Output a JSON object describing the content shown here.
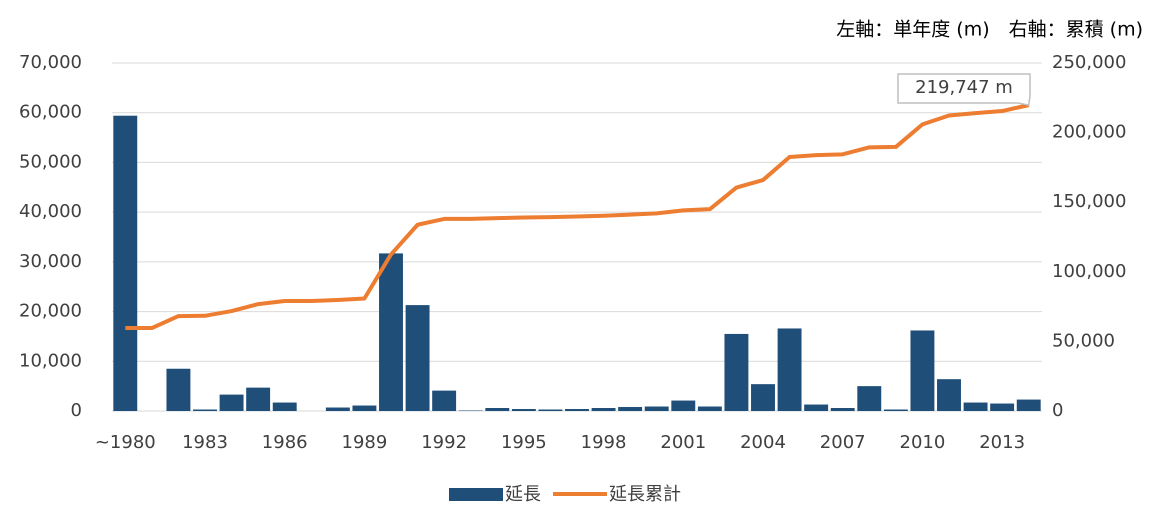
{
  "chart_data": {
    "type": "bar-line",
    "axis_note": "左軸：単年度 (m)　右軸：累積 (m)",
    "annotation": "219,747 m",
    "categories": [
      "~1980",
      null,
      null,
      "1983",
      null,
      null,
      "1986",
      null,
      null,
      "1989",
      null,
      null,
      "1992",
      null,
      null,
      "1995",
      null,
      null,
      "1998",
      null,
      null,
      "2001",
      null,
      null,
      "2004",
      null,
      null,
      "2007",
      null,
      null,
      "2010",
      null,
      null,
      "2013",
      null
    ],
    "series": [
      {
        "name": "延長",
        "type": "bar",
        "color": "#1f4e79",
        "values": [
          59400,
          0,
          8500,
          300,
          3300,
          4700,
          1700,
          0,
          700,
          1100,
          31700,
          21300,
          4100,
          100,
          600,
          400,
          300,
          400,
          600,
          800,
          900,
          2100,
          900,
          15500,
          5400,
          16600,
          1300,
          600,
          5000,
          300,
          16200,
          6400,
          1700,
          1500,
          2300
        ]
      },
      {
        "name": "延長累計",
        "type": "line",
        "axis": "y2",
        "color": "#ed7d31",
        "values": [
          59600,
          59600,
          68200,
          68400,
          71800,
          76800,
          79000,
          79000,
          79700,
          80800,
          112500,
          133800,
          138000,
          138000,
          138600,
          139000,
          139300,
          139700,
          140300,
          141100,
          142000,
          144100,
          145000,
          160500,
          165900,
          182500,
          183800,
          184400,
          189400,
          189700,
          205900,
          212300,
          214000,
          215500,
          219747
        ]
      }
    ],
    "ylim": [
      0,
      70000
    ],
    "yticks": [
      0,
      {
        "value": 10000,
        "label": "10,000"
      },
      {
        "value": 20000,
        "label": "20,000"
      },
      {
        "value": 30000,
        "label": "30,000"
      },
      {
        "value": 40000,
        "label": "40,000"
      },
      {
        "value": 50000,
        "label": "50,000"
      },
      {
        "value": 60000,
        "label": "60,000"
      },
      {
        "value": 70000,
        "label": "70,000"
      }
    ],
    "y2lim": [
      0,
      250000
    ],
    "y2ticks": [
      0,
      {
        "value": 50000,
        "label": "50,000"
      },
      {
        "value": 100000,
        "label": "100,000"
      },
      {
        "value": 150000,
        "label": "150,000"
      },
      {
        "value": 200000,
        "label": "200,000"
      },
      {
        "value": 250000,
        "label": "250,000"
      }
    ],
    "grid": true,
    "legend": "bottom"
  }
}
